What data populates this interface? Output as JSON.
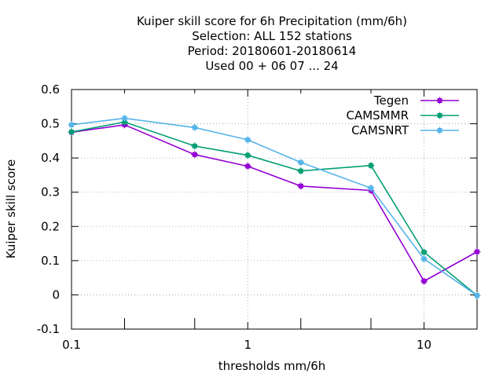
{
  "chart_data": {
    "type": "line",
    "title_lines": [
      "Kuiper skill score  for 6h Precipitation (mm/6h)",
      "Selection: ALL    152 stations",
      "Period: 20180601-20180614",
      "Used  00 + 06 07 ... 24"
    ],
    "xlabel": "thresholds mm/6h",
    "ylabel": "Kuiper skill score",
    "x_scale": "log",
    "xlim": [
      0.1,
      20
    ],
    "ylim": [
      -0.1,
      0.6
    ],
    "x_ticks": [
      {
        "value": 0.1,
        "label": "0.1"
      },
      {
        "value": 1,
        "label": "1"
      },
      {
        "value": 10,
        "label": "10"
      }
    ],
    "x_minor_ticks": [
      0.2,
      0.5,
      2,
      5,
      20
    ],
    "y_ticks": [
      {
        "value": -0.1,
        "label": "-0.1"
      },
      {
        "value": 0,
        "label": "0"
      },
      {
        "value": 0.1,
        "label": "0.1"
      },
      {
        "value": 0.2,
        "label": "0.2"
      },
      {
        "value": 0.3,
        "label": "0.3"
      },
      {
        "value": 0.4,
        "label": "0.4"
      },
      {
        "value": 0.5,
        "label": "0.5"
      },
      {
        "value": 0.6,
        "label": "0.6"
      }
    ],
    "grid": true,
    "legend_position": "top-right",
    "x": [
      0.1,
      0.2,
      0.5,
      1,
      2,
      5,
      10,
      20
    ],
    "series": [
      {
        "name": "Tegen",
        "color": "#9400d3",
        "values": [
          0.475,
          0.497,
          0.41,
          0.376,
          0.318,
          0.305,
          0.04,
          0.126
        ]
      },
      {
        "name": "CAMSMMR",
        "color": "#009e73",
        "values": [
          0.476,
          0.505,
          0.435,
          0.408,
          0.362,
          0.378,
          0.125,
          -0.002
        ]
      },
      {
        "name": "CAMSNRT",
        "color": "#56b4e9",
        "values": [
          0.497,
          0.516,
          0.489,
          0.453,
          0.387,
          0.312,
          0.105,
          -0.002
        ]
      }
    ]
  }
}
